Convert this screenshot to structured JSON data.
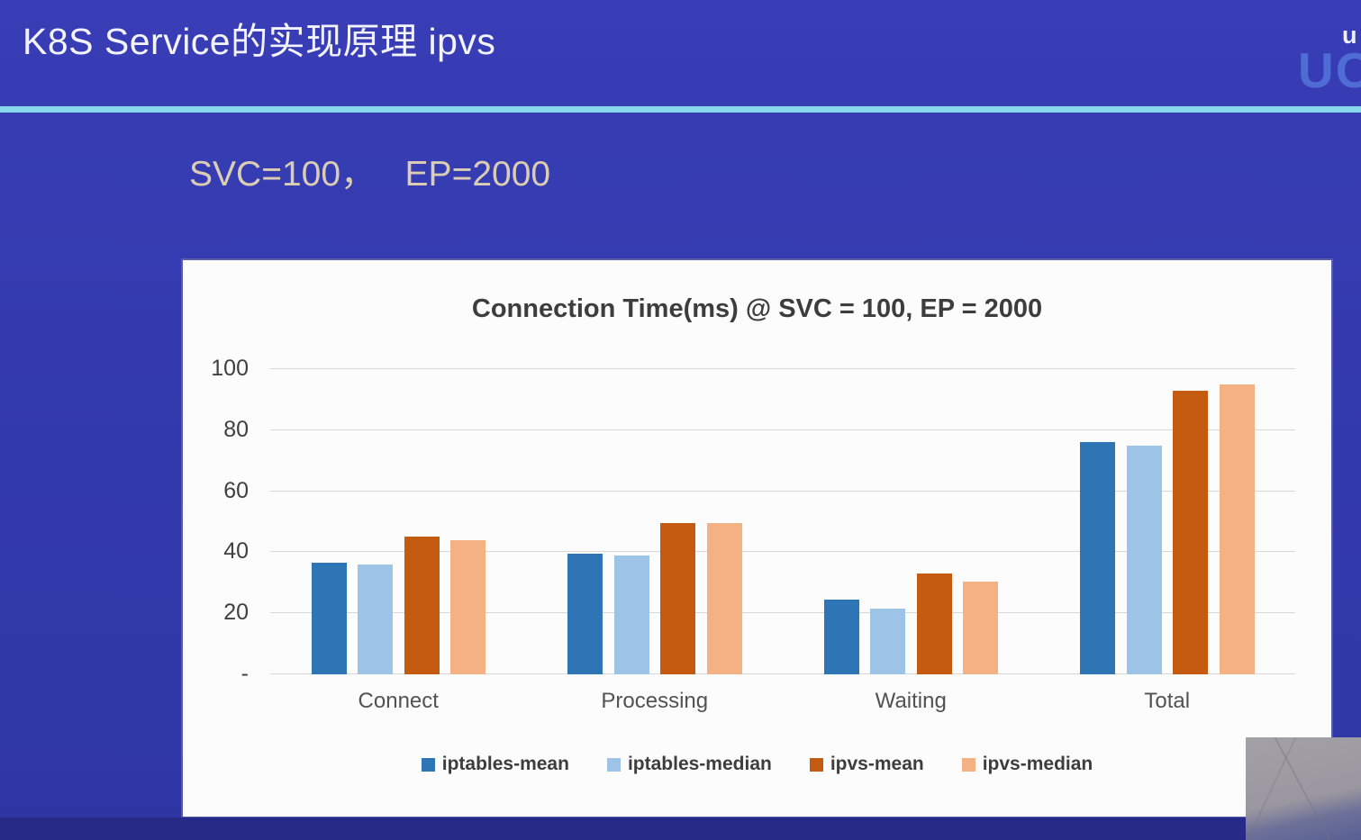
{
  "slide": {
    "title": "K8S Service的实现原理 ipvs",
    "subtitle": "SVC=100，   EP=2000",
    "logo_small": "u",
    "logo_large": "UC"
  },
  "colors": {
    "background": "#3239ab",
    "accent_divider": "#86d8ea",
    "subtitle_text": "#dbcdb4",
    "bottom_strip": "#272b87",
    "logo_blue": "#4e6cd3",
    "panel_background": "#fcfcfd"
  },
  "chart_data": {
    "type": "bar",
    "title": "Connection Time(ms) @ SVC = 100, EP = 2000",
    "xlabel": "",
    "ylabel": "",
    "ylim": [
      0,
      100
    ],
    "grid": "horizontal",
    "legend_position": "bottom",
    "categories": [
      "Connect",
      "Processing",
      "Waiting",
      "Total"
    ],
    "yticks": [
      {
        "label": "100",
        "value": 100
      },
      {
        "label": "80",
        "value": 80
      },
      {
        "label": "60",
        "value": 60
      },
      {
        "label": "40",
        "value": 40
      },
      {
        "label": "20",
        "value": 20
      },
      {
        "label": "-",
        "value": 0
      }
    ],
    "series": [
      {
        "name": "iptables-mean",
        "color": "#2e75b6",
        "values": [
          36.5,
          39.5,
          24.5,
          76
        ]
      },
      {
        "name": "iptables-median",
        "color": "#9dc3e6",
        "values": [
          36,
          39,
          21.5,
          75
        ]
      },
      {
        "name": "ipvs-mean",
        "color": "#c55a11",
        "values": [
          45,
          49.5,
          33,
          93
        ]
      },
      {
        "name": "ipvs-median",
        "color": "#f4b183",
        "values": [
          44,
          49.5,
          30.5,
          95
        ]
      }
    ]
  }
}
